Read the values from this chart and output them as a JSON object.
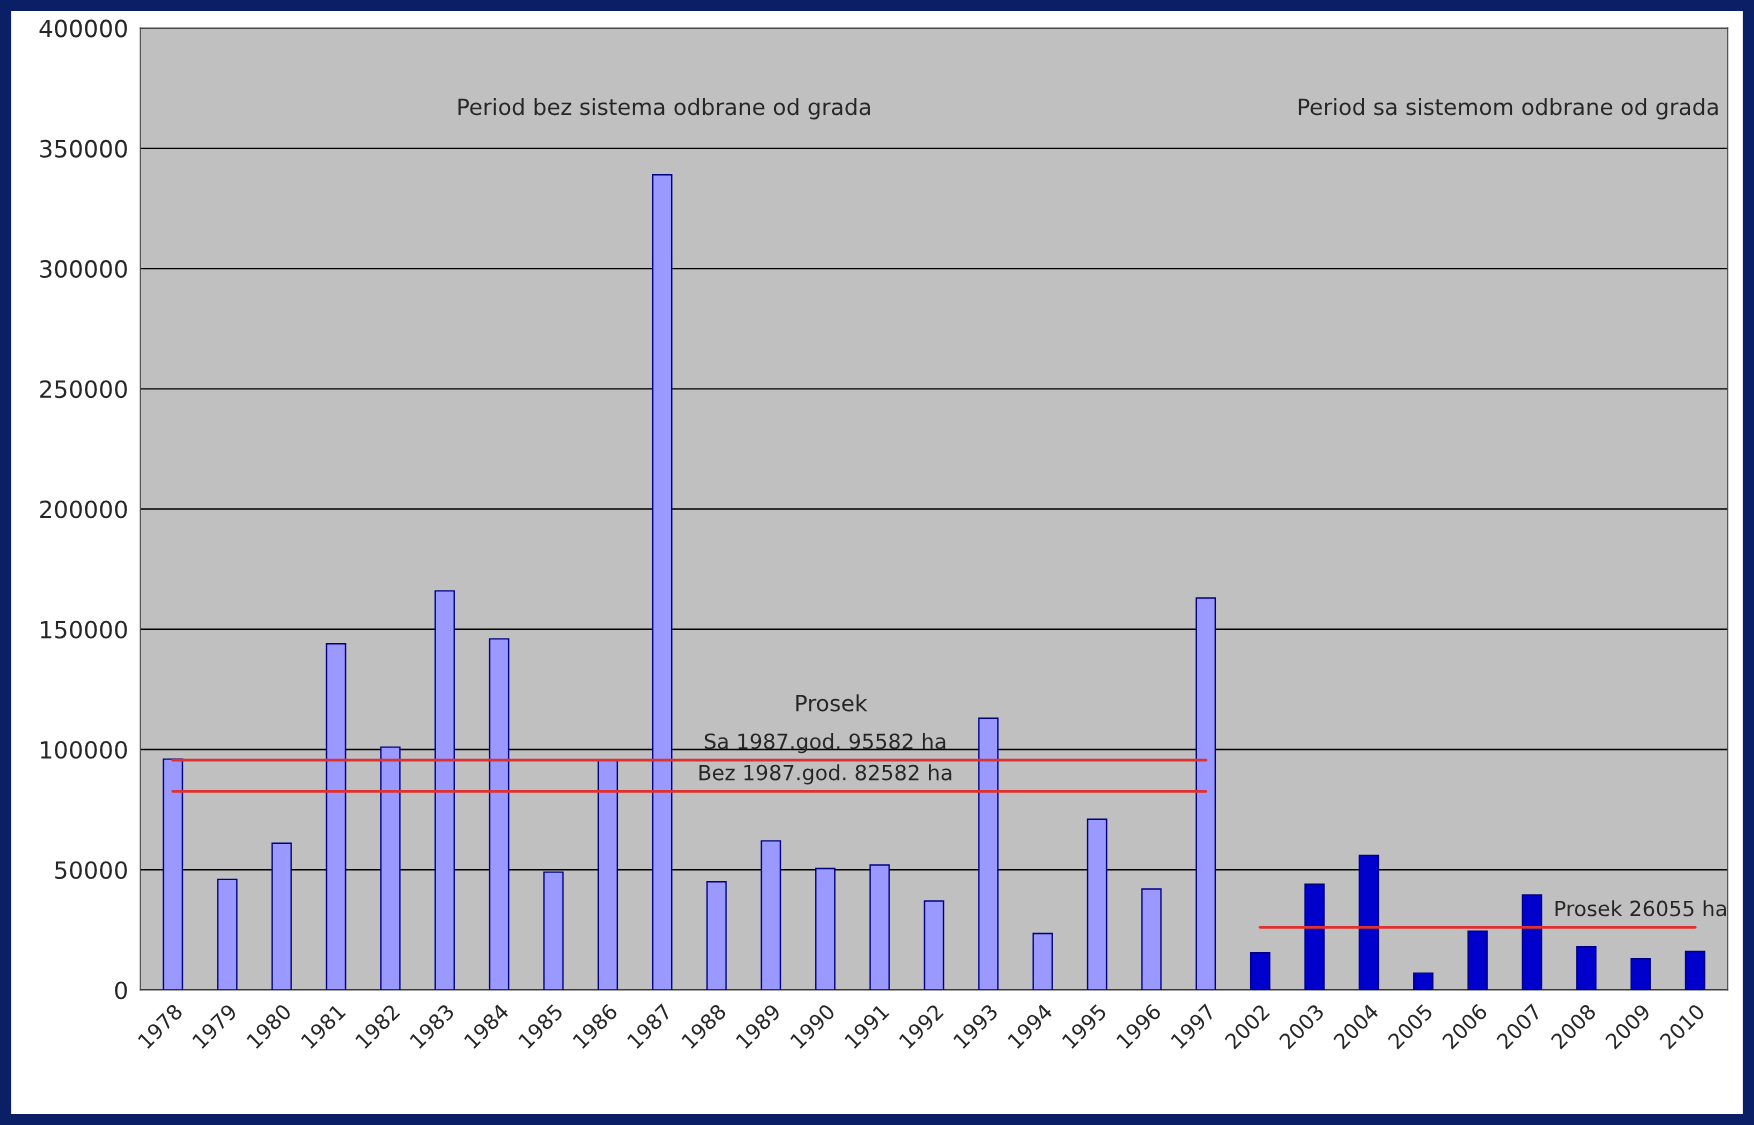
{
  "chart_data": {
    "type": "bar",
    "categories": [
      "1978",
      "1979",
      "1980",
      "1981",
      "1982",
      "1983",
      "1984",
      "1985",
      "1986",
      "1987",
      "1988",
      "1989",
      "1990",
      "1991",
      "1992",
      "1993",
      "1994",
      "1995",
      "1996",
      "1997",
      "2002",
      "2003",
      "2004",
      "2005",
      "2006",
      "2007",
      "2008",
      "2009",
      "2010"
    ],
    "series": [
      {
        "values": [
          96000,
          46000,
          61000,
          144000,
          101000,
          166000,
          146000,
          49000,
          95500,
          339000,
          45000,
          62000,
          50500,
          52000,
          37000,
          113000,
          23500,
          71000,
          42000,
          163000,
          15500,
          44000,
          56000,
          7000,
          24500,
          39500,
          18000,
          13000,
          16000
        ],
        "colors": [
          "#9999ff",
          "#9999ff",
          "#9999ff",
          "#9999ff",
          "#9999ff",
          "#9999ff",
          "#9999ff",
          "#9999ff",
          "#9999ff",
          "#9999ff",
          "#9999ff",
          "#9999ff",
          "#9999ff",
          "#9999ff",
          "#9999ff",
          "#9999ff",
          "#9999ff",
          "#9999ff",
          "#9999ff",
          "#9999ff",
          "#0000cc",
          "#0000cc",
          "#0000cc",
          "#0000cc",
          "#0000cc",
          "#0000cc",
          "#0000cc",
          "#0000cc",
          "#0000cc"
        ]
      },
      {
        "type": "line",
        "color": "#e03030",
        "values": [
          95582,
          95582,
          95582,
          95582,
          95582,
          95582,
          95582,
          95582,
          95582,
          95582,
          95582,
          95582,
          95582,
          95582,
          95582,
          95582,
          95582,
          95582,
          95582,
          95582,
          null,
          null,
          null,
          null,
          null,
          null,
          null,
          null,
          null
        ]
      },
      {
        "type": "line",
        "color": "#e03030",
        "values": [
          82582,
          82582,
          82582,
          82582,
          82582,
          82582,
          82582,
          82582,
          82582,
          82582,
          82582,
          82582,
          82582,
          82582,
          82582,
          82582,
          82582,
          82582,
          82582,
          82582,
          null,
          null,
          null,
          null,
          null,
          null,
          null,
          null,
          null
        ]
      },
      {
        "type": "line",
        "color": "#e03030",
        "values": [
          null,
          null,
          null,
          null,
          null,
          null,
          null,
          null,
          null,
          null,
          null,
          null,
          null,
          null,
          null,
          null,
          null,
          null,
          null,
          null,
          26055,
          26055,
          26055,
          26055,
          26055,
          26055,
          26055,
          26055,
          26055
        ]
      }
    ],
    "ylim": [
      0,
      400000
    ],
    "yticks": [
      0,
      50000,
      100000,
      150000,
      200000,
      250000,
      300000,
      350000,
      400000
    ],
    "grid": "y",
    "annotations": [
      "Period bez sistema odbrane od grada",
      "Period sa sistemom odbrane od grada",
      "Prosek",
      {
        "text": "Sa 1987.god. 95582 ha",
        "x": "1990",
        "y": 95582
      },
      {
        "text": "Bez 1987.god. 82582 ha",
        "x": "1990",
        "y": 82582
      },
      {
        "text": "Prosek 26055 ha",
        "x": "2009",
        "y": 26055
      }
    ]
  }
}
